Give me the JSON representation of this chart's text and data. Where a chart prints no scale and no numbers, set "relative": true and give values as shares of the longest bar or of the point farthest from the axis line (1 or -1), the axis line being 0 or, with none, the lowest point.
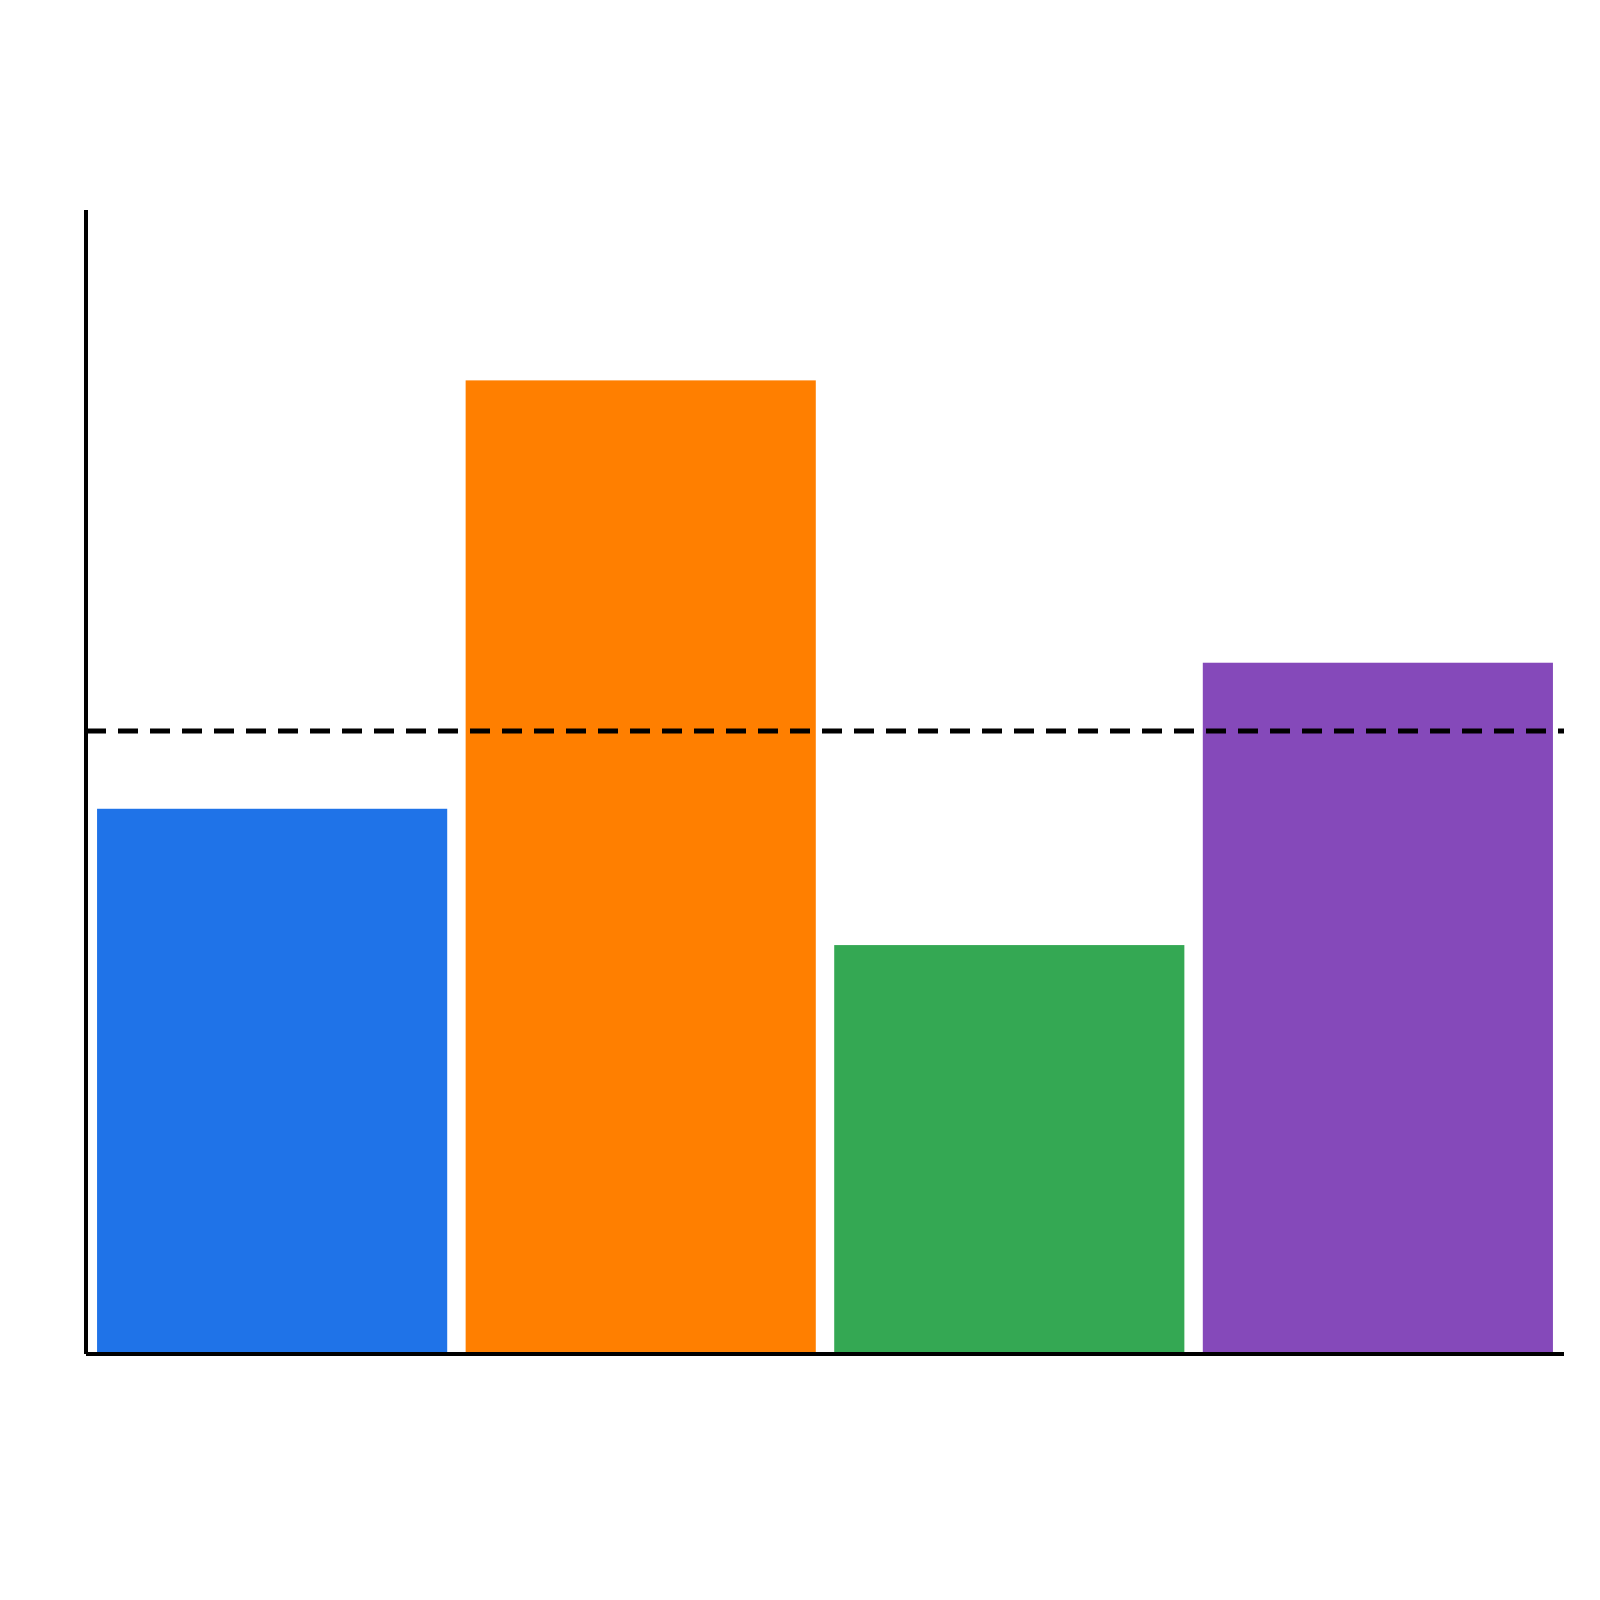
{
  "chart_data": {
    "type": "bar",
    "relative": true,
    "categories": [
      null,
      null,
      null,
      null
    ],
    "values": [
      0.56,
      1,
      0.42,
      0.71
    ],
    "colors": [
      "#1f73e8",
      "#ff7f00",
      "#34a853",
      "#8549ba"
    ],
    "ref_lines": [
      {
        "axis": "y",
        "value": 0.64,
        "color": "#000000",
        "line_style": "dashed"
      }
    ]
  }
}
